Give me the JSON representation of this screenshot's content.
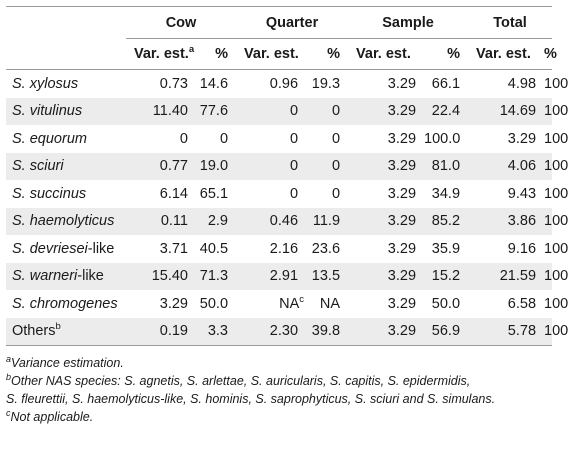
{
  "table": {
    "groups": [
      "Cow",
      "Quarter",
      "Sample",
      "Total"
    ],
    "subheaders": {
      "var_est": "Var. est.",
      "var_est_sup": "a",
      "pct": "%"
    },
    "rows": [
      {
        "species": "S. xylosus",
        "cow_var": "0.73",
        "cow_pct": "14.6",
        "quarter_var": "0.96",
        "quarter_var_sup": "",
        "quarter_pct": "19.3",
        "sample_var": "3.29",
        "sample_pct": "66.1",
        "total_var": "4.98",
        "total_pct": "100"
      },
      {
        "species": "S. vitulinus",
        "cow_var": "11.40",
        "cow_pct": "77.6",
        "quarter_var": "0",
        "quarter_var_sup": "",
        "quarter_pct": "0",
        "sample_var": "3.29",
        "sample_pct": "22.4",
        "total_var": "14.69",
        "total_pct": "100"
      },
      {
        "species": "S. equorum",
        "cow_var": "0",
        "cow_pct": "0",
        "quarter_var": "0",
        "quarter_var_sup": "",
        "quarter_pct": "0",
        "sample_var": "3.29",
        "sample_pct": "100.0",
        "total_var": "3.29",
        "total_pct": "100"
      },
      {
        "species": "S. sciuri",
        "cow_var": "0.77",
        "cow_pct": "19.0",
        "quarter_var": "0",
        "quarter_var_sup": "",
        "quarter_pct": "0",
        "sample_var": "3.29",
        "sample_pct": "81.0",
        "total_var": "4.06",
        "total_pct": "100"
      },
      {
        "species": "S. succinus",
        "cow_var": "6.14",
        "cow_pct": "65.1",
        "quarter_var": "0",
        "quarter_var_sup": "",
        "quarter_pct": "0",
        "sample_var": "3.29",
        "sample_pct": "34.9",
        "total_var": "9.43",
        "total_pct": "100"
      },
      {
        "species": "S. haemolyticus",
        "cow_var": "0.11",
        "cow_pct": "2.9",
        "quarter_var": "0.46",
        "quarter_var_sup": "",
        "quarter_pct": "11.9",
        "sample_var": "3.29",
        "sample_pct": "85.2",
        "total_var": "3.86",
        "total_pct": "100"
      },
      {
        "species": "S. devriesei",
        "species_suffix": "-like",
        "cow_var": "3.71",
        "cow_pct": "40.5",
        "quarter_var": "2.16",
        "quarter_var_sup": "",
        "quarter_pct": "23.6",
        "sample_var": "3.29",
        "sample_pct": "35.9",
        "total_var": "9.16",
        "total_pct": "100"
      },
      {
        "species": "S. warneri",
        "species_suffix": "-like",
        "cow_var": "15.40",
        "cow_pct": "71.3",
        "quarter_var": "2.91",
        "quarter_var_sup": "",
        "quarter_pct": "13.5",
        "sample_var": "3.29",
        "sample_pct": "15.2",
        "total_var": "21.59",
        "total_pct": "100"
      },
      {
        "species": "S. chromogenes",
        "cow_var": "3.29",
        "cow_pct": "50.0",
        "quarter_var": "NA",
        "quarter_var_sup": "c",
        "quarter_pct": "NA",
        "sample_var": "3.29",
        "sample_pct": "50.0",
        "total_var": "6.58",
        "total_pct": "100"
      },
      {
        "species": "Others",
        "species_plain": true,
        "species_sup": "b",
        "cow_var": "0.19",
        "cow_pct": "3.3",
        "quarter_var": "2.30",
        "quarter_var_sup": "",
        "quarter_pct": "39.8",
        "sample_var": "3.29",
        "sample_pct": "56.9",
        "total_var": "5.78",
        "total_pct": "100"
      }
    ]
  },
  "footnotes": {
    "a_mark": "a",
    "a_text": "Variance estimation.",
    "b_mark": "b",
    "b_text_line1": "Other NAS species: S. agnetis, S. arlettae, S. auricularis, S. capitis, S. epidermidis,",
    "b_text_line2": "S. fleurettii, S. haemolyticus-like, S. hominis, S. saprophyticus, S. sciuri and S. simulans.",
    "c_mark": "c",
    "c_text": "Not applicable."
  }
}
